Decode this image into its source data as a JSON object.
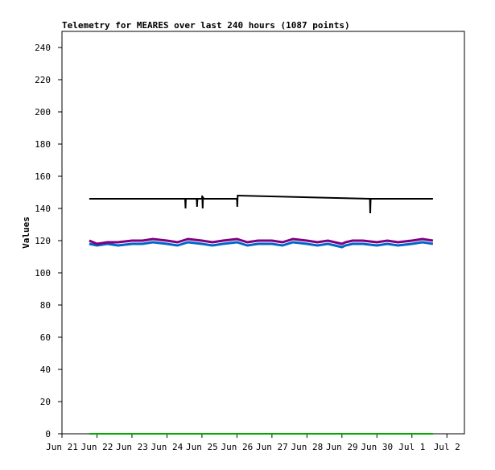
{
  "chart_data": {
    "type": "line",
    "title": "Telemetry for MEARES over last 240 hours (1087 points)",
    "xlabel": "",
    "ylabel": "Values",
    "ylim": [
      0,
      250
    ],
    "xlim": [
      0,
      11.5
    ],
    "grid": false,
    "legend": "none",
    "yticks": [
      0,
      20,
      40,
      60,
      80,
      100,
      120,
      140,
      160,
      180,
      200,
      220,
      240
    ],
    "xticks": [
      {
        "x": 0,
        "label": "Jun 21"
      },
      {
        "x": 1,
        "label": "Jun 22"
      },
      {
        "x": 2,
        "label": "Jun 23"
      },
      {
        "x": 3,
        "label": "Jun 24"
      },
      {
        "x": 4,
        "label": "Jun 25"
      },
      {
        "x": 5,
        "label": "Jun 26"
      },
      {
        "x": 6,
        "label": "Jun 27"
      },
      {
        "x": 7,
        "label": "Jun 28"
      },
      {
        "x": 8,
        "label": "Jun 29"
      },
      {
        "x": 9,
        "label": "Jun 30"
      },
      {
        "x": 10,
        "label": "Jul 1"
      },
      {
        "x": 11,
        "label": "Jul 2"
      }
    ],
    "series": [
      {
        "color": "#0066cc",
        "width": 3,
        "x": [
          0.78,
          1.0,
          1.3,
          1.6,
          2.0,
          2.3,
          2.6,
          3.0,
          3.3,
          3.6,
          4.0,
          4.3,
          4.6,
          5.0,
          5.3,
          5.6,
          6.0,
          6.3,
          6.6,
          7.0,
          7.3,
          7.6,
          8.0,
          8.1,
          8.3,
          8.6,
          9.0,
          9.3,
          9.6,
          10.0,
          10.3,
          10.6
        ],
        "y": [
          118,
          117,
          118,
          117,
          118,
          118,
          119,
          118,
          117,
          119,
          118,
          117,
          118,
          119,
          117,
          118,
          118,
          117,
          119,
          118,
          117,
          118,
          116,
          117,
          118,
          118,
          117,
          118,
          117,
          118,
          119,
          118
        ]
      },
      {
        "color": "#800080",
        "width": 3,
        "x": [
          0.78,
          1.0,
          1.3,
          1.6,
          2.0,
          2.3,
          2.6,
          3.0,
          3.3,
          3.6,
          4.0,
          4.3,
          4.6,
          5.0,
          5.3,
          5.6,
          6.0,
          6.3,
          6.6,
          7.0,
          7.3,
          7.6,
          8.0,
          8.1,
          8.3,
          8.6,
          9.0,
          9.3,
          9.6,
          10.0,
          10.3,
          10.6
        ],
        "y": [
          120,
          118,
          119,
          119,
          120,
          120,
          121,
          120,
          119,
          121,
          120,
          119,
          120,
          121,
          119,
          120,
          120,
          119,
          121,
          120,
          119,
          120,
          118,
          119,
          120,
          120,
          119,
          120,
          119,
          120,
          121,
          120
        ]
      },
      {
        "color": "#000000",
        "width": 2,
        "x": [
          0.78,
          3.52,
          3.53,
          3.54,
          3.85,
          3.86,
          3.87,
          4.0,
          4.01,
          4.02,
          4.03,
          4.05,
          5.0,
          5.01,
          5.02,
          8.8,
          8.81,
          8.82,
          10.6
        ],
        "y": [
          146,
          146,
          140,
          146,
          146,
          141,
          146,
          146,
          148,
          140,
          147,
          146,
          146,
          141,
          148,
          146,
          137,
          146,
          146
        ]
      },
      {
        "color": "#00aa00",
        "width": 2,
        "x": [
          0.78,
          10.6
        ],
        "y": [
          0,
          0
        ]
      }
    ]
  }
}
